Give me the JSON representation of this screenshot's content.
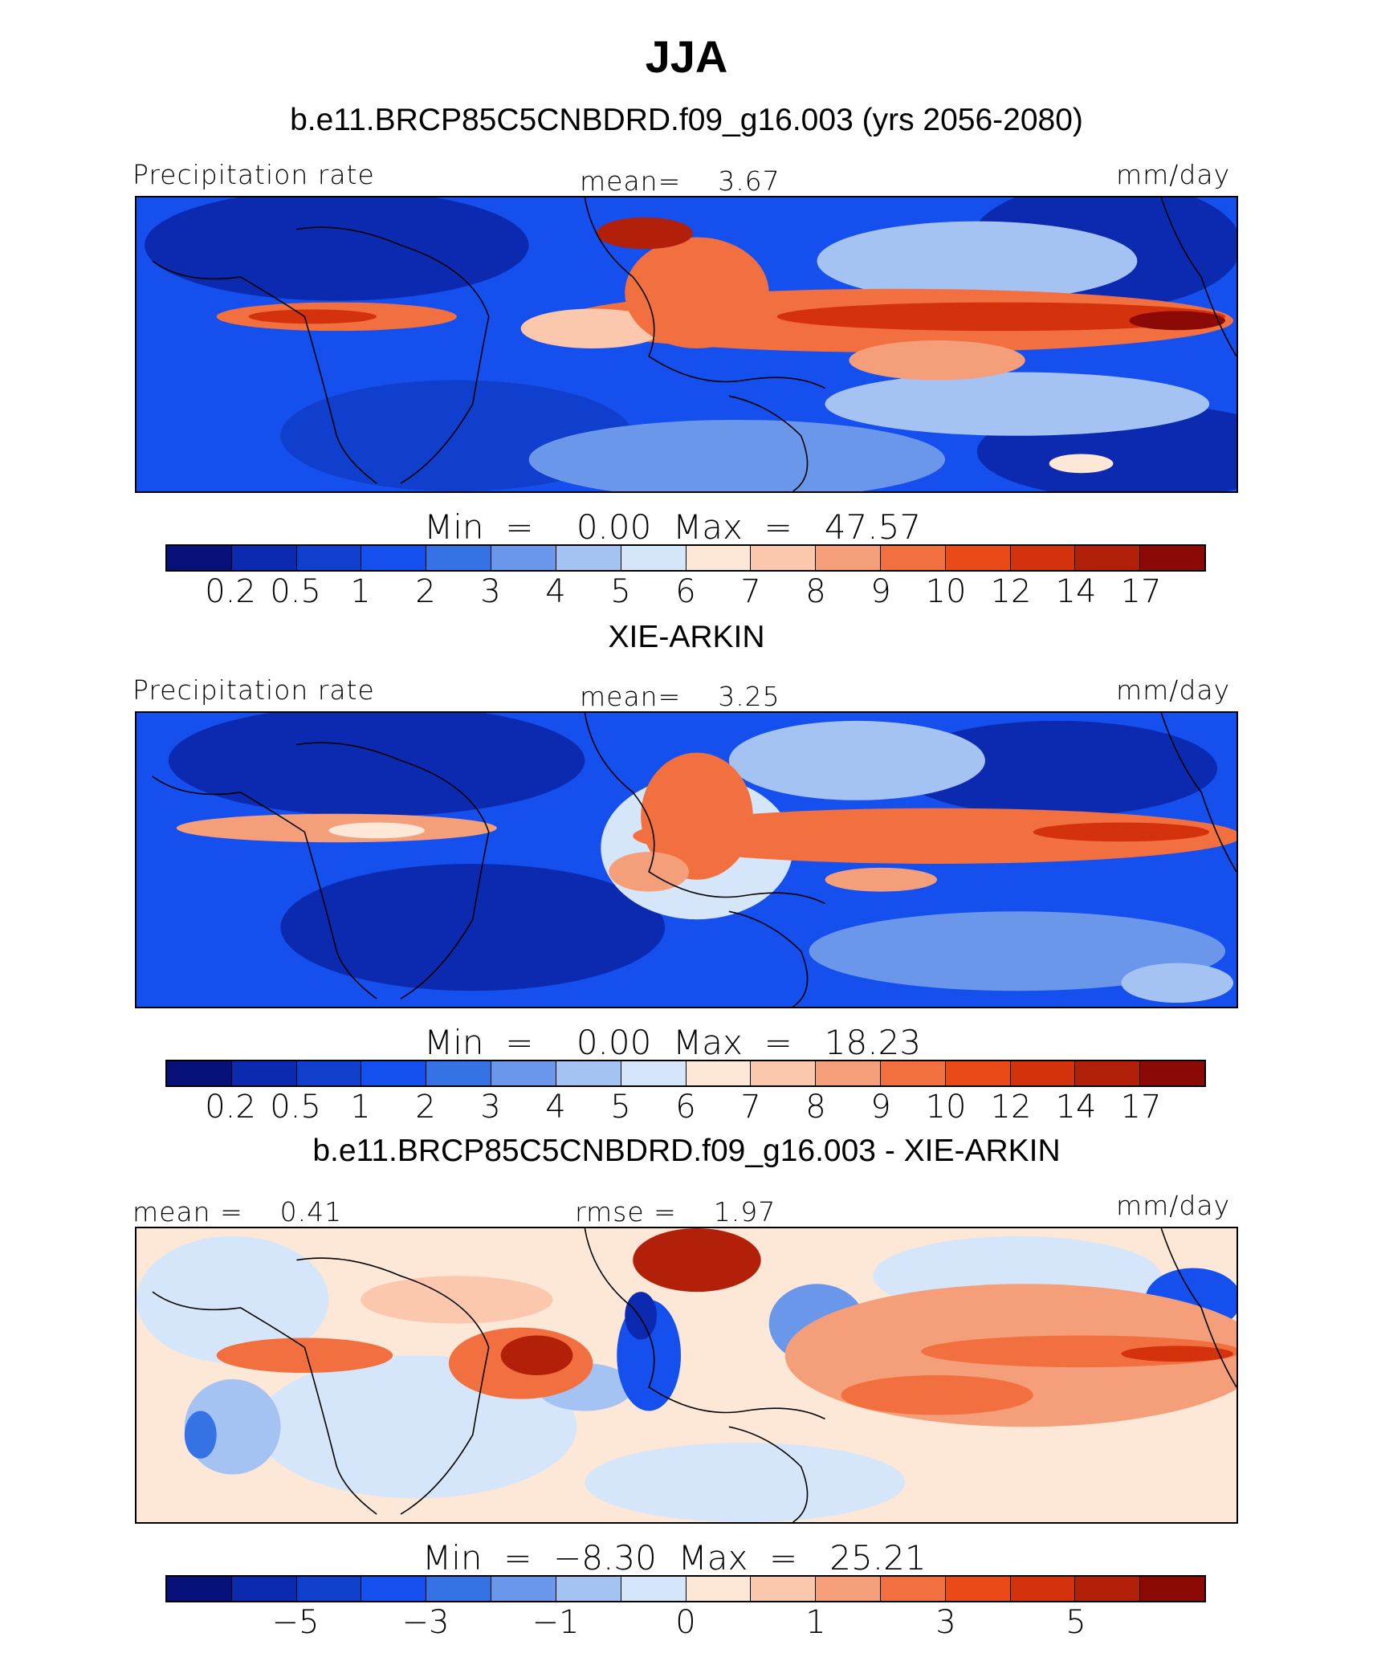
{
  "figure": {
    "title": "JJA"
  },
  "palette": {
    "precip": [
      "#08107a",
      "#0c2ab0",
      "#0f3fcc",
      "#1550ee",
      "#3572e6",
      "#6b97ea",
      "#a4c2f2",
      "#d6e6fa",
      "#fde7d6",
      "#fbc8ae",
      "#f59f7a",
      "#f2703f",
      "#ea4a18",
      "#d4310d",
      "#b2200a",
      "#8b0a05"
    ],
    "diff": [
      "#08107a",
      "#0c2ab0",
      "#0f3fcc",
      "#1550ee",
      "#3572e6",
      "#6b97ea",
      "#a4c2f2",
      "#d6e6fa",
      "#fde7d6",
      "#fbc8ae",
      "#f59f7a",
      "#f2703f",
      "#ea4a18",
      "#d4310d",
      "#b2200a",
      "#8b0a05"
    ],
    "coastline": "#000000"
  },
  "chart_data": [
    {
      "type": "heatmap",
      "title": "b.e11.BRCP85C5CNBDRD.f09_g16.003 (yrs 2056-2080)",
      "left_label": "Precipitation rate",
      "center_label": "mean=    3.67",
      "units": "mm/day",
      "mean": 3.67,
      "min": 0.0,
      "max": 47.57,
      "minmax_text": "Min  =    0.00  Max  =   47.57",
      "colorbar_levels": [
        "0.2",
        "0.5",
        "1",
        "2",
        "3",
        "4",
        "5",
        "6",
        "7",
        "8",
        "9",
        "10",
        "12",
        "14",
        "17"
      ],
      "colorbar_bins": 16,
      "palette_key": "precip"
    },
    {
      "type": "heatmap",
      "title": "XIE-ARKIN",
      "left_label": "Precipitation rate",
      "center_label": "mean=    3.25",
      "units": "mm/day",
      "mean": 3.25,
      "min": 0.0,
      "max": 18.23,
      "minmax_text": "Min  =    0.00  Max  =   18.23",
      "colorbar_levels": [
        "0.2",
        "0.5",
        "1",
        "2",
        "3",
        "4",
        "5",
        "6",
        "7",
        "8",
        "9",
        "10",
        "12",
        "14",
        "17"
      ],
      "colorbar_bins": 16,
      "palette_key": "precip"
    },
    {
      "type": "heatmap",
      "title": "b.e11.BRCP85C5CNBDRD.f09_g16.003 - XIE-ARKIN",
      "left_label": "mean =    0.41",
      "center_label": "rmse =    1.97",
      "units": "mm/day",
      "mean": 0.41,
      "rmse": 1.97,
      "min": -8.3,
      "max": 25.21,
      "minmax_text": "Min  =  −8.30  Max  =   25.21",
      "colorbar_levels": [
        "−5",
        "−3",
        "−1",
        "0",
        "1",
        "3",
        "5"
      ],
      "colorbar_bins": 16,
      "palette_key": "diff"
    }
  ]
}
